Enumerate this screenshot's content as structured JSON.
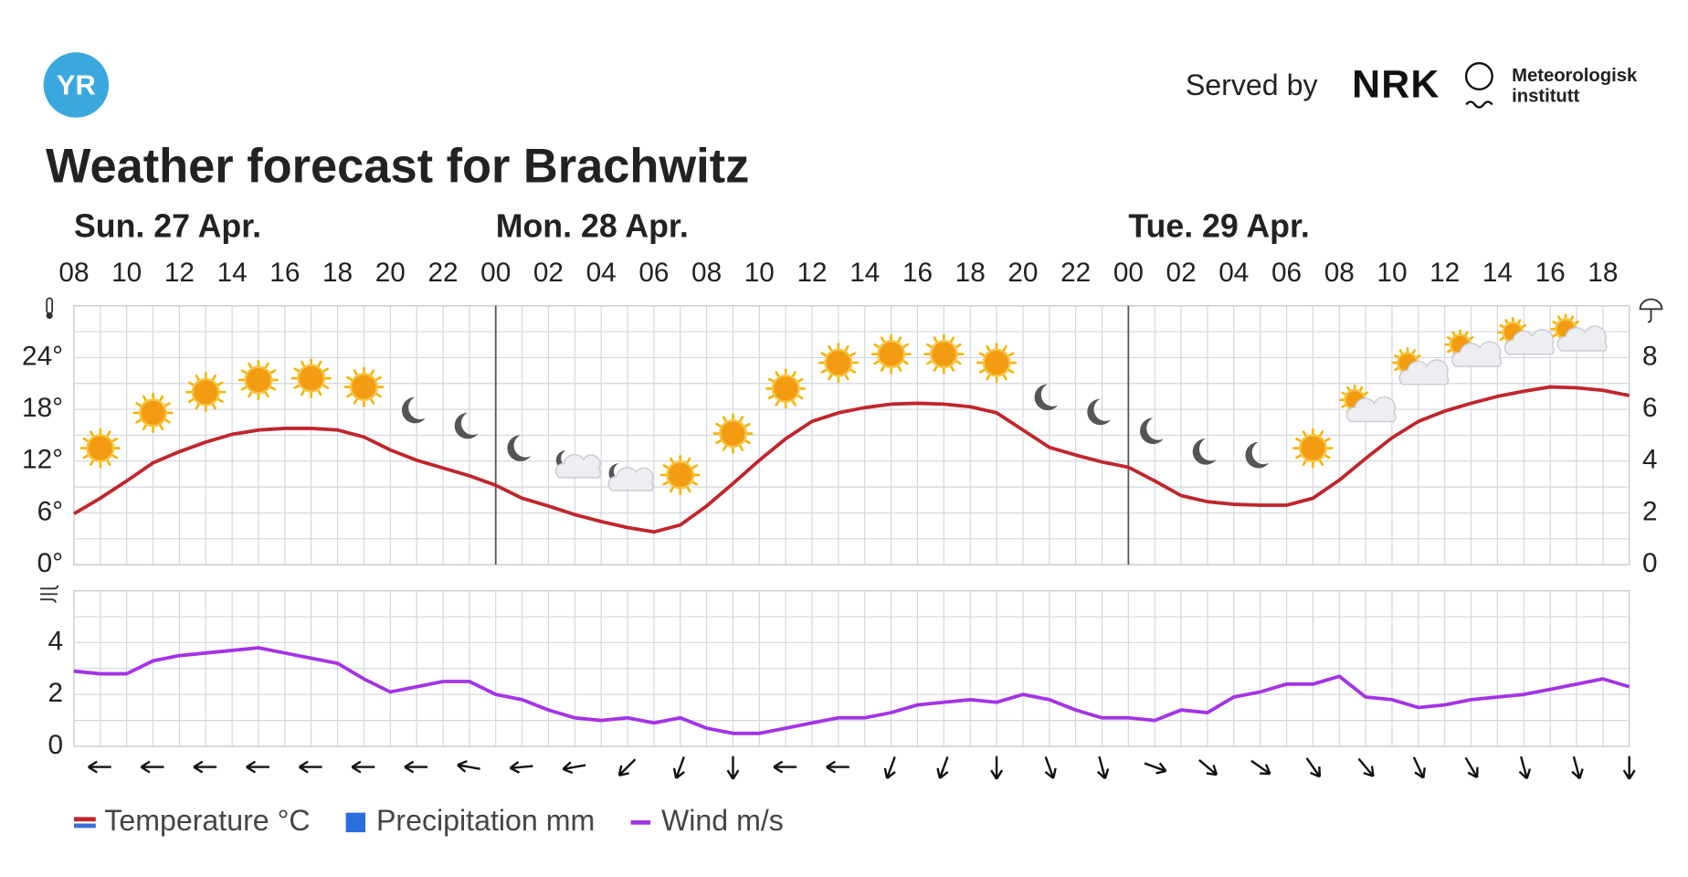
{
  "header": {
    "logo": "YR",
    "served_by": "Served by",
    "nrk": "NRK",
    "met": [
      "Meteorologisk",
      "institutt"
    ]
  },
  "chart_data": [
    {
      "type": "line",
      "title": "Weather forecast for Brachwitz",
      "days": [
        {
          "label": "Sun. 27 Apr.",
          "x": 0
        },
        {
          "label": "Mon. 28 Apr.",
          "x": 16
        },
        {
          "label": "Tue. 29 Apr.",
          "x": 40
        }
      ],
      "x": [
        0,
        1,
        2,
        3,
        4,
        5,
        6,
        7,
        8,
        9,
        10,
        11,
        12,
        13,
        14,
        15,
        16,
        17,
        18,
        19,
        20,
        21,
        22,
        23,
        24,
        25,
        26,
        27,
        28,
        29,
        30,
        31,
        32,
        33,
        34,
        35,
        36,
        37,
        38,
        39,
        40,
        41,
        42,
        43,
        44,
        45,
        46,
        47,
        48,
        49,
        50,
        51,
        52,
        53,
        54,
        55,
        56,
        57,
        58,
        59
      ],
      "xlim": [
        0,
        59
      ],
      "xticks": [
        {
          "value": 0,
          "label": "08"
        },
        {
          "value": 2,
          "label": "10"
        },
        {
          "value": 4,
          "label": "12"
        },
        {
          "value": 6,
          "label": "14"
        },
        {
          "value": 8,
          "label": "16"
        },
        {
          "value": 10,
          "label": "18"
        },
        {
          "value": 12,
          "label": "20"
        },
        {
          "value": 14,
          "label": "22"
        },
        {
          "value": 16,
          "label": "00"
        },
        {
          "value": 18,
          "label": "02"
        },
        {
          "value": 20,
          "label": "04"
        },
        {
          "value": 22,
          "label": "06"
        },
        {
          "value": 24,
          "label": "08"
        },
        {
          "value": 26,
          "label": "10"
        },
        {
          "value": 28,
          "label": "12"
        },
        {
          "value": 30,
          "label": "14"
        },
        {
          "value": 32,
          "label": "16"
        },
        {
          "value": 34,
          "label": "18"
        },
        {
          "value": 36,
          "label": "20"
        },
        {
          "value": 38,
          "label": "22"
        },
        {
          "value": 40,
          "label": "00"
        },
        {
          "value": 42,
          "label": "02"
        },
        {
          "value": 44,
          "label": "04"
        },
        {
          "value": 46,
          "label": "06"
        },
        {
          "value": 48,
          "label": "08"
        },
        {
          "value": 50,
          "label": "10"
        },
        {
          "value": 52,
          "label": "12"
        },
        {
          "value": 54,
          "label": "14"
        },
        {
          "value": 56,
          "label": "16"
        },
        {
          "value": 58,
          "label": "18"
        }
      ],
      "ylim": [
        0,
        30
      ],
      "yticks": [
        {
          "value": 0,
          "label": "0°"
        },
        {
          "value": 6,
          "label": "6°"
        },
        {
          "value": 12,
          "label": "12°"
        },
        {
          "value": 18,
          "label": "18°"
        },
        {
          "value": 24,
          "label": "24°"
        }
      ],
      "y2lim": [
        0,
        10
      ],
      "y2ticks": [
        0,
        2,
        4,
        6,
        8
      ],
      "grid": true,
      "series": [
        {
          "name": "Temperature °C",
          "color": "#c0262c",
          "values": [
            5.9,
            7.7,
            9.7,
            11.8,
            13.1,
            14.2,
            15.1,
            15.6,
            15.8,
            15.8,
            15.6,
            14.8,
            13.3,
            12.1,
            11.2,
            10.3,
            9.2,
            7.7,
            6.8,
            5.8,
            5.0,
            4.3,
            3.8,
            4.6,
            6.8,
            9.4,
            12.1,
            14.6,
            16.6,
            17.6,
            18.2,
            18.6,
            18.7,
            18.6,
            18.3,
            17.6,
            15.6,
            13.6,
            12.7,
            11.9,
            11.3,
            9.7,
            8.0,
            7.3,
            7.0,
            6.9,
            6.9,
            7.7,
            9.8,
            12.3,
            14.7,
            16.6,
            17.8,
            18.7,
            19.5,
            20.1,
            20.6,
            20.5,
            20.2,
            19.6
          ]
        },
        {
          "name": "Precipitation mm",
          "color": "#2a6fdb",
          "axis": "y2",
          "values": [
            0,
            0,
            0,
            0,
            0,
            0,
            0,
            0,
            0,
            0,
            0,
            0,
            0,
            0,
            0,
            0,
            0,
            0,
            0,
            0,
            0,
            0,
            0,
            0,
            0,
            0,
            0,
            0,
            0,
            0,
            0,
            0,
            0,
            0,
            0,
            0,
            0,
            0,
            0,
            0,
            0,
            0,
            0,
            0,
            0,
            0,
            0,
            0,
            0,
            0,
            0,
            0,
            0,
            0,
            0,
            0,
            0,
            0,
            0,
            0
          ]
        }
      ]
    },
    {
      "type": "line",
      "x": [
        0,
        1,
        2,
        3,
        4,
        5,
        6,
        7,
        8,
        9,
        10,
        11,
        12,
        13,
        14,
        15,
        16,
        17,
        18,
        19,
        20,
        21,
        22,
        23,
        24,
        25,
        26,
        27,
        28,
        29,
        30,
        31,
        32,
        33,
        34,
        35,
        36,
        37,
        38,
        39,
        40,
        41,
        42,
        43,
        44,
        45,
        46,
        47,
        48,
        49,
        50,
        51,
        52,
        53,
        54,
        55,
        56,
        57,
        58,
        59
      ],
      "xlim": [
        0,
        59
      ],
      "ylim": [
        0,
        6
      ],
      "yticks": [
        0,
        2,
        4
      ],
      "grid": true,
      "series": [
        {
          "name": "Wind m/s",
          "color": "#a334e6",
          "values": [
            2.9,
            2.8,
            2.8,
            3.3,
            3.5,
            3.6,
            3.7,
            3.8,
            3.6,
            3.4,
            3.2,
            2.6,
            2.1,
            2.3,
            2.5,
            2.5,
            2.0,
            1.8,
            1.4,
            1.1,
            1.0,
            1.1,
            0.9,
            1.1,
            0.7,
            0.5,
            0.5,
            0.7,
            0.9,
            1.1,
            1.1,
            1.3,
            1.6,
            1.7,
            1.8,
            1.7,
            2.0,
            1.8,
            1.4,
            1.1,
            1.1,
            1.0,
            1.4,
            1.3,
            1.9,
            2.1,
            2.4,
            2.4,
            2.7,
            1.9,
            1.8,
            1.5,
            1.6,
            1.8,
            1.9,
            2.0,
            2.2,
            2.4,
            2.6,
            2.3
          ]
        }
      ]
    }
  ]
}
